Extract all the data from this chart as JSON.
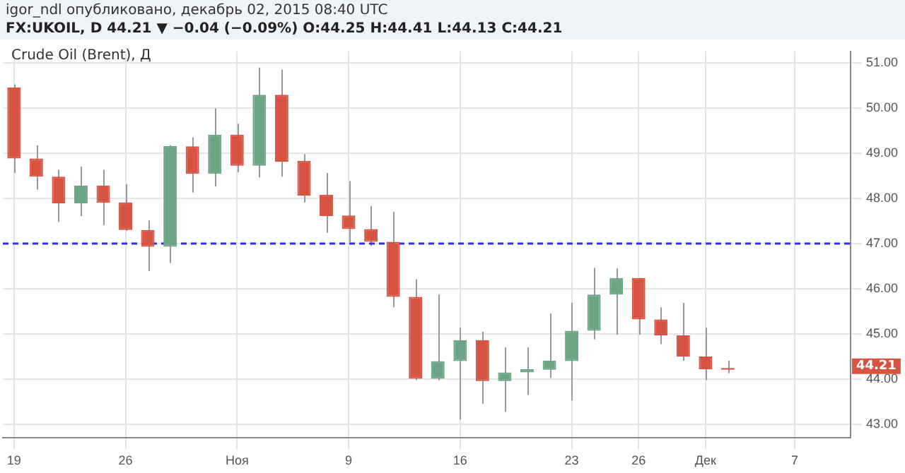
{
  "chart_data": {
    "type": "candlestick",
    "title": "igor_ndl опубликовано, декабрь 02, 2015 08:40 UTC",
    "subtitle": "FX:UKOIL, D 44.21 ▼ −0.04 (−0.09%) O:44.25 H:44.41 L:44.13 C:44.21",
    "categories": [
      "19",
      null,
      null,
      null,
      null,
      "26",
      null,
      null,
      null,
      null,
      "Ноя",
      null,
      null,
      null,
      null,
      "9",
      null,
      null,
      null,
      null,
      "16",
      null,
      null,
      null,
      null,
      "23",
      null,
      null,
      "26",
      null,
      null,
      "Дек",
      null,
      null,
      null,
      "7",
      null,
      null
    ],
    "ohlc": [
      [
        50.45,
        50.52,
        48.56,
        48.88
      ],
      [
        48.88,
        49.17,
        48.19,
        48.48
      ],
      [
        48.48,
        48.63,
        47.48,
        47.89
      ],
      [
        47.89,
        48.7,
        47.61,
        48.28
      ],
      [
        48.28,
        48.63,
        47.41,
        47.9
      ],
      [
        47.91,
        48.31,
        47.28,
        47.3
      ],
      [
        47.3,
        47.51,
        46.39,
        46.93
      ],
      [
        46.93,
        49.18,
        46.57,
        49.16
      ],
      [
        49.15,
        49.35,
        48.13,
        48.54
      ],
      [
        48.54,
        49.99,
        48.26,
        49.41
      ],
      [
        49.41,
        49.65,
        48.58,
        48.72
      ],
      [
        48.72,
        50.89,
        48.46,
        50.29
      ],
      [
        50.29,
        50.85,
        48.48,
        48.81
      ],
      [
        48.83,
        48.98,
        47.91,
        48.06
      ],
      [
        48.08,
        48.56,
        47.24,
        47.61
      ],
      [
        47.62,
        48.38,
        47.03,
        47.32
      ],
      [
        47.32,
        47.83,
        46.95,
        47.04
      ],
      [
        47.04,
        47.7,
        45.59,
        45.82
      ],
      [
        45.82,
        46.21,
        43.98,
        44.01
      ],
      [
        44.01,
        45.87,
        43.98,
        44.4
      ],
      [
        44.4,
        45.14,
        43.11,
        44.86
      ],
      [
        44.86,
        45.05,
        43.46,
        43.96
      ],
      [
        43.96,
        44.7,
        43.28,
        44.15
      ],
      [
        44.15,
        44.7,
        43.65,
        44.22
      ],
      [
        44.21,
        45.45,
        44.03,
        44.41
      ],
      [
        44.4,
        45.69,
        43.53,
        45.07
      ],
      [
        45.07,
        46.46,
        44.88,
        45.87
      ],
      [
        45.87,
        46.45,
        44.98,
        46.24
      ],
      [
        46.24,
        46.24,
        44.98,
        45.32
      ],
      [
        45.32,
        45.59,
        44.78,
        44.97
      ],
      [
        44.97,
        45.69,
        44.41,
        44.5
      ],
      [
        44.5,
        45.14,
        43.98,
        44.22
      ],
      [
        44.25,
        44.41,
        44.13,
        44.21
      ],
      null,
      null,
      null,
      null,
      null
    ],
    "colors": [
      "#d75442",
      "#d75442",
      "#d75442",
      "#6ba583",
      "#d75442",
      "#d75442",
      "#d75442",
      "#6ba583",
      "#d75442",
      "#6ba583",
      "#d75442",
      "#6ba583",
      "#d75442",
      "#d75442",
      "#d75442",
      "#d75442",
      "#d75442",
      "#d75442",
      "#d75442",
      "#6ba583",
      "#6ba583",
      "#d75442",
      "#6ba583",
      "#6ba583",
      "#6ba583",
      "#6ba583",
      "#6ba583",
      "#6ba583",
      "#d75442",
      "#d75442",
      "#d75442",
      "#d75442",
      "#d75442",
      null,
      null,
      null,
      null,
      null
    ],
    "ylim": [
      42.7,
      51.25
    ],
    "yticks": [
      {
        "value": 43,
        "label": "43.00"
      },
      {
        "value": 44,
        "label": "44.00"
      },
      {
        "value": 45,
        "label": "45.00"
      },
      {
        "value": 46,
        "label": "46.00"
      },
      {
        "value": 47,
        "label": "47.00"
      },
      {
        "value": 48,
        "label": "48.00"
      },
      {
        "value": 49,
        "label": "49.00"
      },
      {
        "value": 50,
        "label": "50.00"
      },
      {
        "value": 51,
        "label": "51.00"
      }
    ],
    "grid": true,
    "ref_lines": [
      {
        "axis": "y",
        "value": 47,
        "color": "#3333cc",
        "line_style": "dashed"
      }
    ],
    "annotations": [
      "Crude Oil (Brent), Д",
      "44.21"
    ]
  }
}
